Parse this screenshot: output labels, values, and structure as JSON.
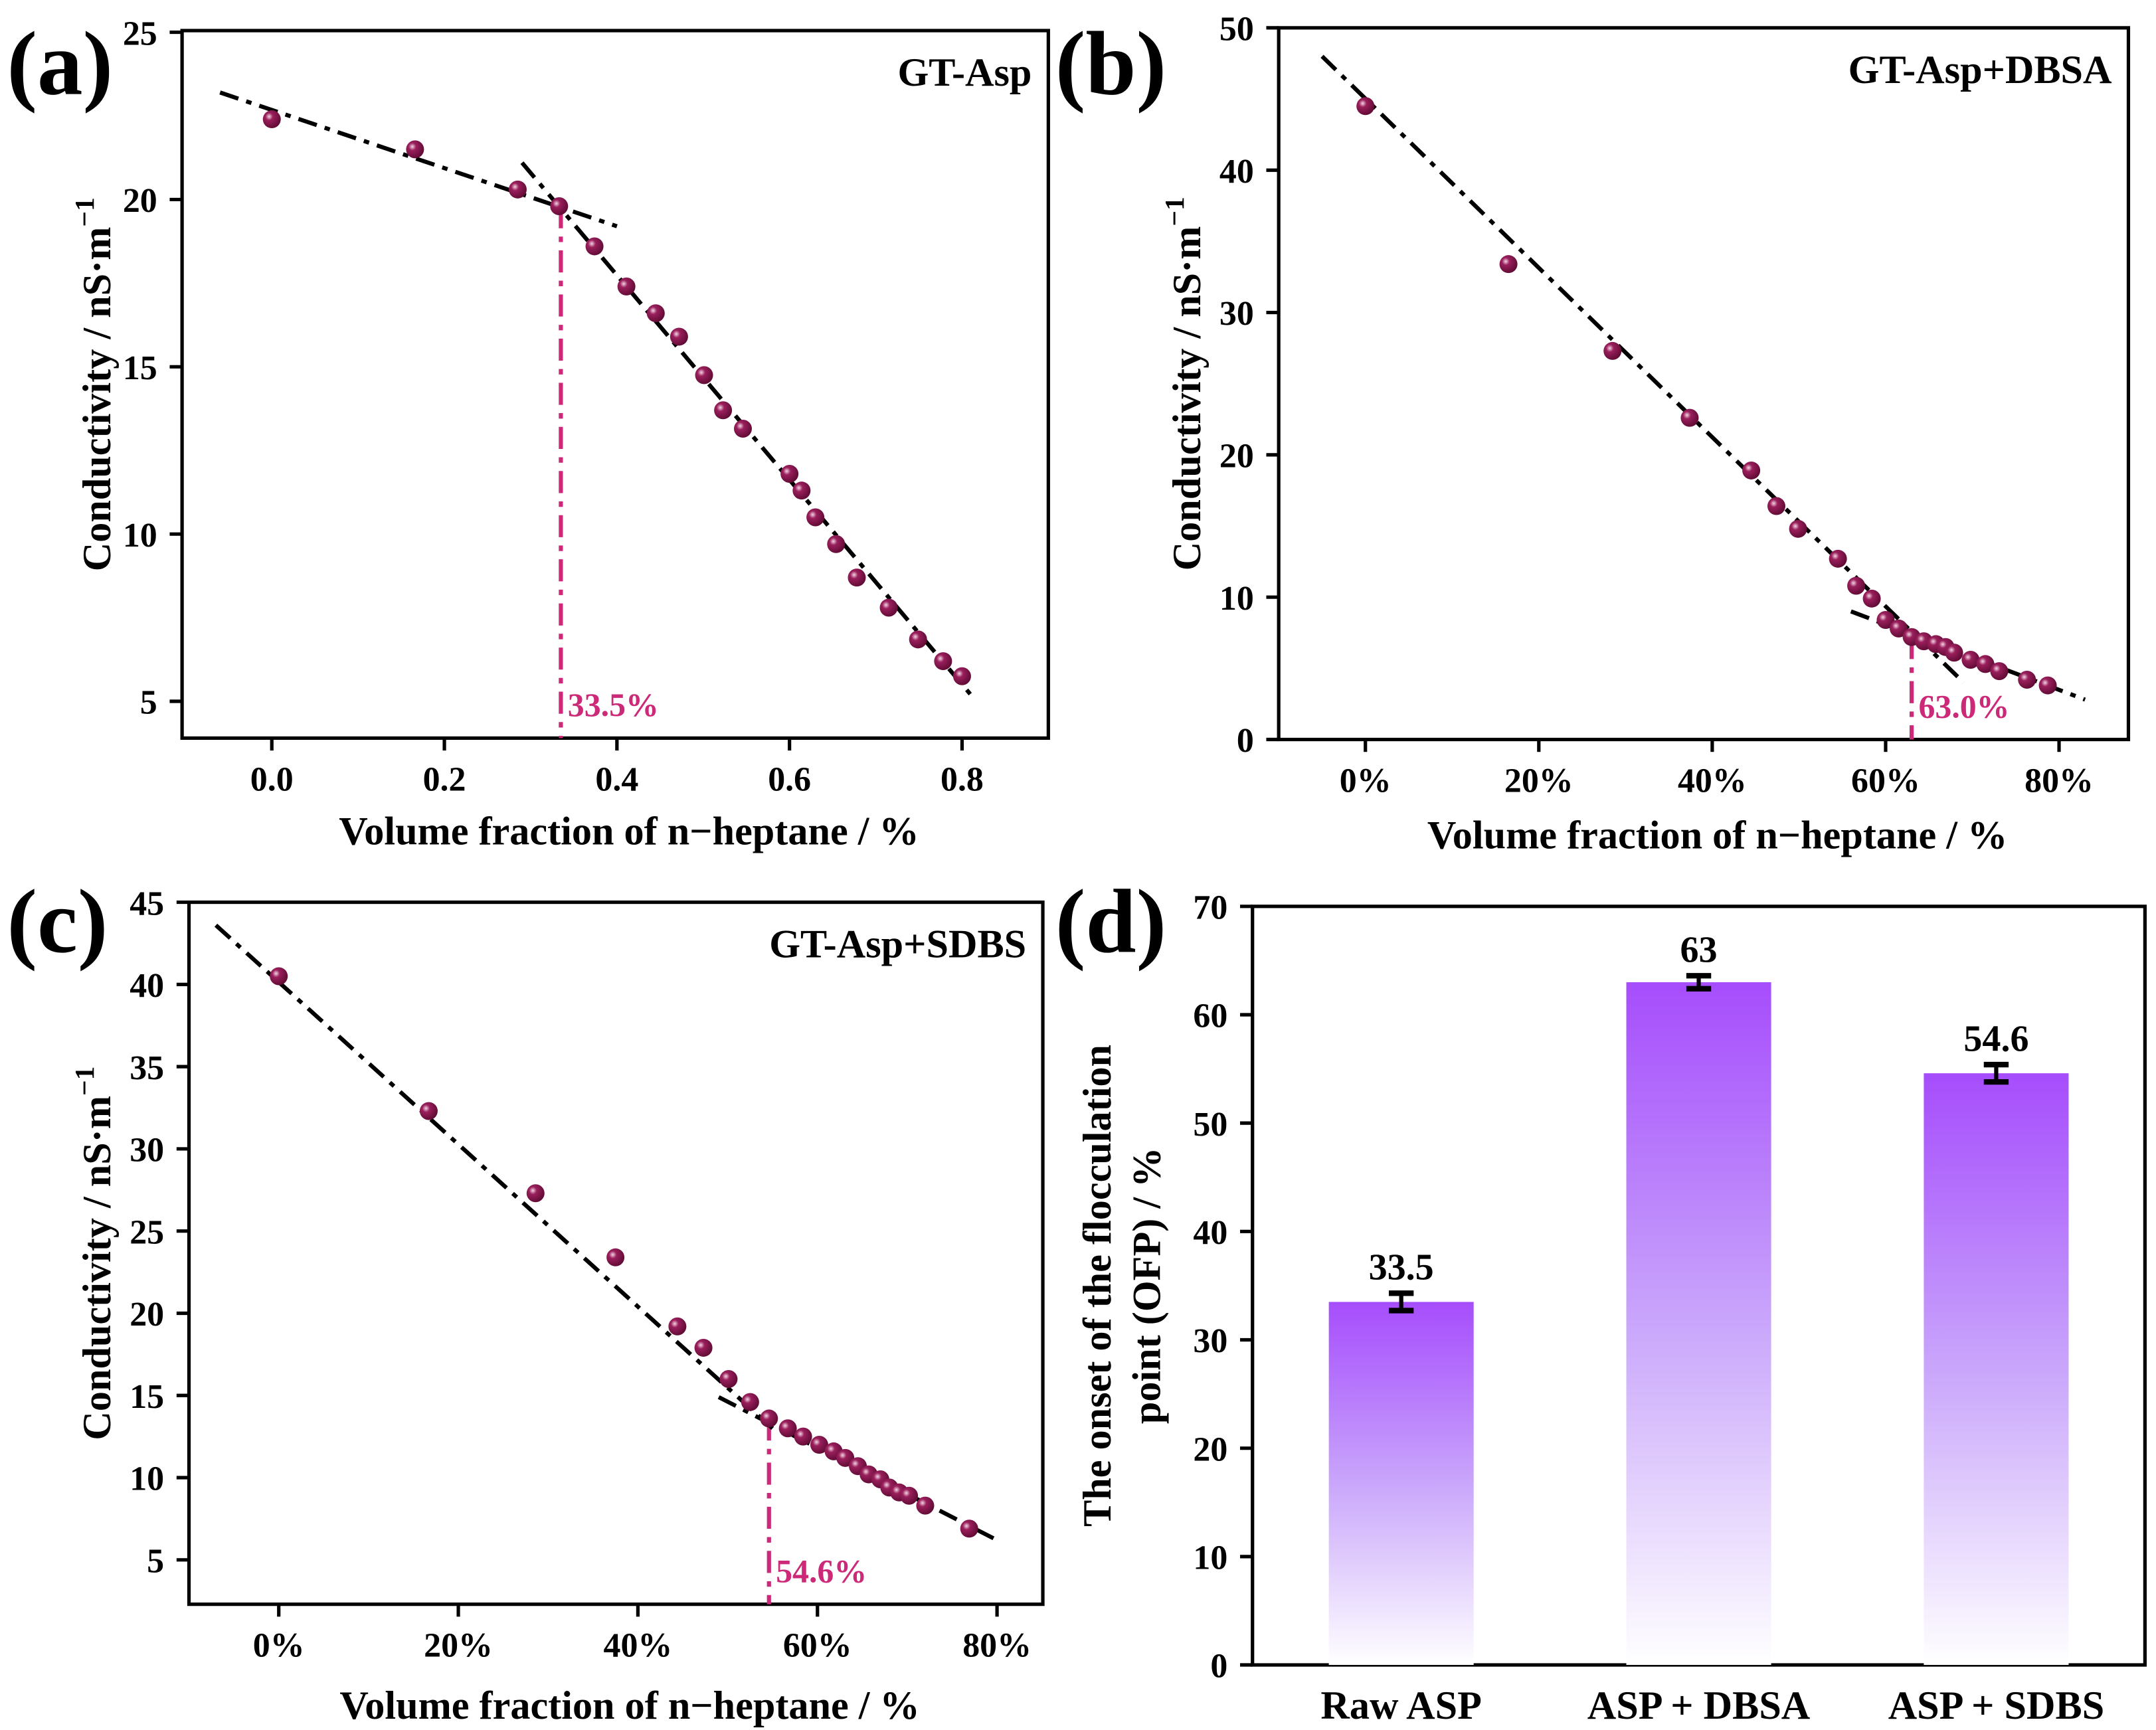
{
  "chart_data": [
    {
      "panel": "(a)",
      "type": "scatter",
      "title": "GT-Asp",
      "xlabel": "Volume fraction of n−heptane / %",
      "ylabel": "Conductivity / nS·m",
      "ylabel_sup": "−1",
      "xlim": [
        -0.104,
        0.9
      ],
      "ylim": [
        3.9,
        25.05
      ],
      "xticks": [
        0,
        0.2,
        0.4,
        0.6,
        0.8
      ],
      "xtick_labels": [
        "0.0",
        "0.2",
        "0.4",
        "0.6",
        "0.8"
      ],
      "yticks": [
        5,
        10,
        15,
        20,
        25
      ],
      "ytick_labels": [
        "5",
        "10",
        "15",
        "20",
        "25"
      ],
      "x": [
        0,
        0.166,
        0.285,
        0.333,
        0.374,
        0.411,
        0.445,
        0.472,
        0.501,
        0.523,
        0.546,
        0.6,
        0.614,
        0.63,
        0.654,
        0.678,
        0.715,
        0.749,
        0.778,
        0.8
      ],
      "y": [
        22.4,
        21.5,
        20.3,
        19.8,
        18.6,
        17.4,
        16.6,
        15.9,
        14.75,
        13.7,
        13.15,
        11.8,
        11.3,
        10.5,
        9.7,
        8.7,
        7.8,
        6.85,
        6.2,
        5.75
      ],
      "fit_lines": [
        [
          [
            -0.06,
            23.2
          ],
          [
            0.4,
            19.2
          ]
        ],
        [
          [
            0.29,
            21.1
          ],
          [
            0.81,
            5.2
          ]
        ]
      ],
      "onset": {
        "x": 0.335,
        "y": 19.8,
        "label": "33.5%"
      }
    },
    {
      "panel": "(b)",
      "type": "scatter",
      "title": "GT-Asp+DBSA",
      "xlabel": "Volume fraction of n−heptane / %",
      "ylabel": "Conductivity / nS·m",
      "ylabel_sup": "−1",
      "xlim": [
        -10,
        88
      ],
      "ylim": [
        0,
        50
      ],
      "xticks": [
        0,
        20,
        40,
        60,
        80
      ],
      "xtick_labels": [
        "0%",
        "20%",
        "40%",
        "60%",
        "80%"
      ],
      "yticks": [
        0,
        10,
        20,
        30,
        40,
        50
      ],
      "ytick_labels": [
        "0",
        "10",
        "20",
        "30",
        "40",
        "50"
      ],
      "x": [
        0,
        16.5,
        28.5,
        37.4,
        44.5,
        47.4,
        49.9,
        54.5,
        56.6,
        58.4,
        60,
        61.5,
        63,
        64.4,
        65.8,
        66.9,
        67.9,
        69.8,
        71.5,
        73.1,
        76.3,
        78.7
      ],
      "y": [
        44.5,
        33.4,
        27.3,
        22.6,
        18.9,
        16.4,
        14.8,
        12.7,
        10.8,
        9.9,
        8.4,
        7.8,
        7.2,
        6.9,
        6.7,
        6.5,
        6.1,
        5.6,
        5.3,
        4.8,
        4.2,
        3.8
      ],
      "fit_lines": [
        [
          [
            -5,
            48
          ],
          [
            69,
            4
          ]
        ],
        [
          [
            56,
            9
          ],
          [
            83,
            2.8
          ]
        ]
      ],
      "onset": {
        "x": 63,
        "y": 7.2,
        "label": "63.0%"
      }
    },
    {
      "panel": "(c)",
      "type": "scatter",
      "title": "GT-Asp+SDBS",
      "xlabel": "Volume fraction of n−heptane / %",
      "ylabel": "Conductivity / nS·m",
      "ylabel_sup": "−1",
      "xlim": [
        -10,
        85.1
      ],
      "ylim": [
        2.3,
        45
      ],
      "xticks": [
        0,
        20,
        40,
        60,
        80
      ],
      "xtick_labels": [
        "0%",
        "20%",
        "40%",
        "60%",
        "80%"
      ],
      "yticks": [
        5,
        10,
        15,
        20,
        25,
        30,
        35,
        40,
        45
      ],
      "ytick_labels": [
        "5",
        "10",
        "15",
        "20",
        "25",
        "30",
        "35",
        "40",
        "45"
      ],
      "x": [
        0,
        16.7,
        28.6,
        37.5,
        44.4,
        47.3,
        50.1,
        52.5,
        54.6,
        56.7,
        58.4,
        60.2,
        61.8,
        63.1,
        64.5,
        65.7,
        67,
        68,
        69.1,
        70.2,
        72,
        76.9
      ],
      "y": [
        40.5,
        32.3,
        27.3,
        23.4,
        19.2,
        17.9,
        16.0,
        14.6,
        13.6,
        13.0,
        12.5,
        12.0,
        11.6,
        11.2,
        10.7,
        10.2,
        9.9,
        9.4,
        9.1,
        8.9,
        8.3,
        6.9
      ],
      "fit_lines": [
        [
          [
            -7,
            43.6
          ],
          [
            55,
            13
          ]
        ],
        [
          [
            49,
            14.9
          ],
          [
            80,
            6.2
          ]
        ]
      ],
      "onset": {
        "x": 54.6,
        "y": 13.6,
        "label": "54.6%"
      }
    },
    {
      "panel": "(d)",
      "type": "bar",
      "ylabel": "The onset of the flocculation",
      "ylabel2": "point (OFP) / %",
      "categories": [
        "Raw ASP",
        "ASP + DBSA",
        "ASP + SDBS"
      ],
      "values": [
        33.5,
        63,
        54.6
      ],
      "value_labels": [
        "33.5",
        "63",
        "54.6"
      ],
      "errors": [
        0.8,
        0.6,
        0.8
      ],
      "ylim": [
        0,
        70
      ],
      "yticks": [
        0,
        10,
        20,
        30,
        40,
        50,
        60,
        70
      ],
      "ytick_labels": [
        "0",
        "10",
        "20",
        "30",
        "40",
        "50",
        "60",
        "70"
      ],
      "bar_color": "#a64dfc"
    }
  ],
  "colors": {
    "marker": "#7a0f45",
    "onset": "#cc2a78",
    "bar": "#a64dfc"
  }
}
